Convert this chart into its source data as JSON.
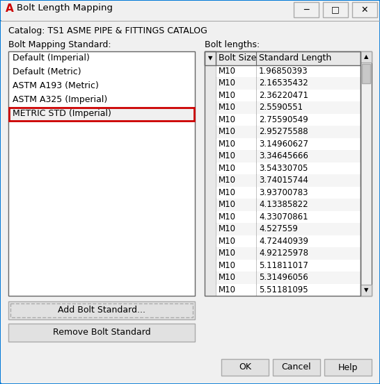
{
  "title": "Bolt Length Mapping",
  "catalog_text": "Catalog: TS1 ASME PIPE & FITTINGS CATALOG",
  "bolt_mapping_label": "Bolt Mapping Standard:",
  "bolt_lengths_label": "Bolt lengths:",
  "standards": [
    "Default (Imperial)",
    "Default (Metric)",
    "ASTM A193 (Metric)",
    "ASTM A325 (Imperial)",
    "METRIC STD (Imperial)"
  ],
  "selected_standard": "METRIC STD (Imperial)",
  "col_headers": [
    "Bolt Size",
    "Standard Length"
  ],
  "bolt_data": [
    [
      "M10",
      "1.96850393"
    ],
    [
      "M10",
      "2.16535432"
    ],
    [
      "M10",
      "2.36220471"
    ],
    [
      "M10",
      "2.5590551"
    ],
    [
      "M10",
      "2.75590549"
    ],
    [
      "M10",
      "2.95275588"
    ],
    [
      "M10",
      "3.14960627"
    ],
    [
      "M10",
      "3.34645666"
    ],
    [
      "M10",
      "3.54330705"
    ],
    [
      "M10",
      "3.74015744"
    ],
    [
      "M10",
      "3.93700783"
    ],
    [
      "M10",
      "4.13385822"
    ],
    [
      "M10",
      "4.33070861"
    ],
    [
      "M10",
      "4.527559"
    ],
    [
      "M10",
      "4.72440939"
    ],
    [
      "M10",
      "4.92125978"
    ],
    [
      "M10",
      "5.11811017"
    ],
    [
      "M10",
      "5.31496056"
    ],
    [
      "M10",
      "5.51181095"
    ]
  ],
  "buttons_left": [
    "Add Bolt Standard...",
    "Remove Bolt Standard"
  ],
  "buttons_right": [
    "OK",
    "Cancel",
    "Help"
  ],
  "bg": "#f0f0f0",
  "white": "#ffffff",
  "header_bg": "#e8e8e8",
  "border": "#aaaaaa",
  "dark_border": "#666666",
  "red_border": "#cc0000",
  "btn_bg": "#e1e1e1",
  "scroll_bg": "#c8c8c8",
  "scroll_track": "#f0f0f0",
  "text": "#000000",
  "red": "#cc0000",
  "titlebar_border": "#0078d7",
  "row_alt": "#f5f5f5",
  "selected_bg": "#f0f0f0"
}
